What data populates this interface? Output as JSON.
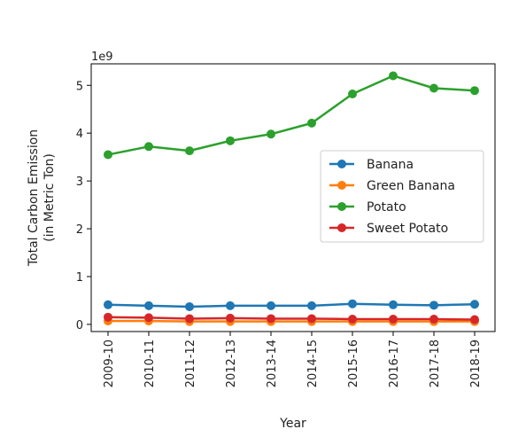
{
  "chart_data": {
    "type": "line",
    "xlabel": "Year",
    "ylabel_lines": [
      "Total Carbon Emission",
      "(in Metric Ton)"
    ],
    "y_offset_text": "1e9",
    "ylim": [
      -0.15,
      5.45
    ],
    "yticks": [
      0,
      1,
      2,
      3,
      4,
      5
    ],
    "grid": false,
    "legend_position": "center-right",
    "categories": [
      "2009-10",
      "2010-11",
      "2011-12",
      "2012-13",
      "2013-14",
      "2014-15",
      "2015-16",
      "2016-17",
      "2017-18",
      "2018-19"
    ],
    "series": [
      {
        "name": "Banana",
        "color": "#1f77b4",
        "values": [
          0.41,
          0.39,
          0.37,
          0.39,
          0.39,
          0.39,
          0.43,
          0.41,
          0.4,
          0.42
        ]
      },
      {
        "name": "Green Banana",
        "color": "#ff7f0e",
        "values": [
          0.07,
          0.07,
          0.06,
          0.06,
          0.06,
          0.06,
          0.06,
          0.06,
          0.06,
          0.06
        ]
      },
      {
        "name": "Potato",
        "color": "#2ca02c",
        "values": [
          3.55,
          3.72,
          3.63,
          3.84,
          3.98,
          4.21,
          4.82,
          5.2,
          4.94,
          4.89
        ]
      },
      {
        "name": "Sweet Potato",
        "color": "#d62728",
        "values": [
          0.15,
          0.14,
          0.12,
          0.13,
          0.12,
          0.12,
          0.11,
          0.11,
          0.11,
          0.1
        ]
      }
    ]
  }
}
